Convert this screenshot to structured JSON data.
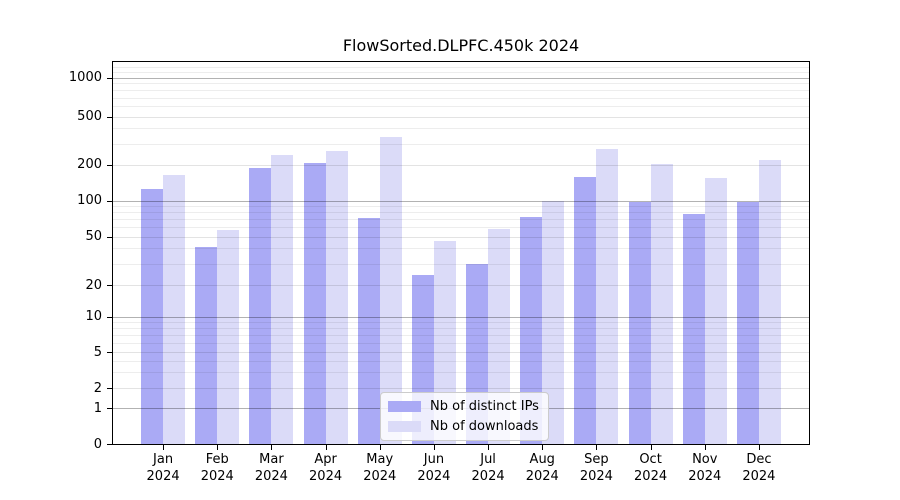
{
  "title": "FlowSorted.DLPFC.450k 2024",
  "chart_data": {
    "type": "bar",
    "title": "FlowSorted.DLPFC.450k 2024",
    "categories": [
      "Jan 2024",
      "Feb 2024",
      "Mar 2024",
      "Apr 2024",
      "May 2024",
      "Jun 2024",
      "Jul 2024",
      "Aug 2024",
      "Sep 2024",
      "Oct 2024",
      "Nov 2024",
      "Dec 2024"
    ],
    "series": [
      {
        "name": "Nb of distinct IPs",
        "color": "#aaaaf5",
        "values": [
          126,
          41,
          187,
          207,
          72,
          24,
          30,
          73,
          158,
          97,
          78,
          97
        ]
      },
      {
        "name": "Nb of downloads",
        "color": "#dbdbf8",
        "values": [
          164,
          57,
          243,
          260,
          338,
          46,
          58,
          100,
          270,
          204,
          155,
          222
        ]
      }
    ],
    "xlabel": "",
    "ylabel": "",
    "yscale": "symlog",
    "ylim": [
      0,
      1400
    ],
    "yticks": [
      0,
      1,
      2,
      5,
      10,
      20,
      50,
      100,
      200,
      500,
      1000
    ],
    "grid": true,
    "grid_strong_ticks": [
      1,
      10,
      100,
      1000
    ],
    "grid_light_ticks": [
      2,
      5,
      20,
      50,
      200,
      500
    ],
    "legend_position": "lower center"
  }
}
